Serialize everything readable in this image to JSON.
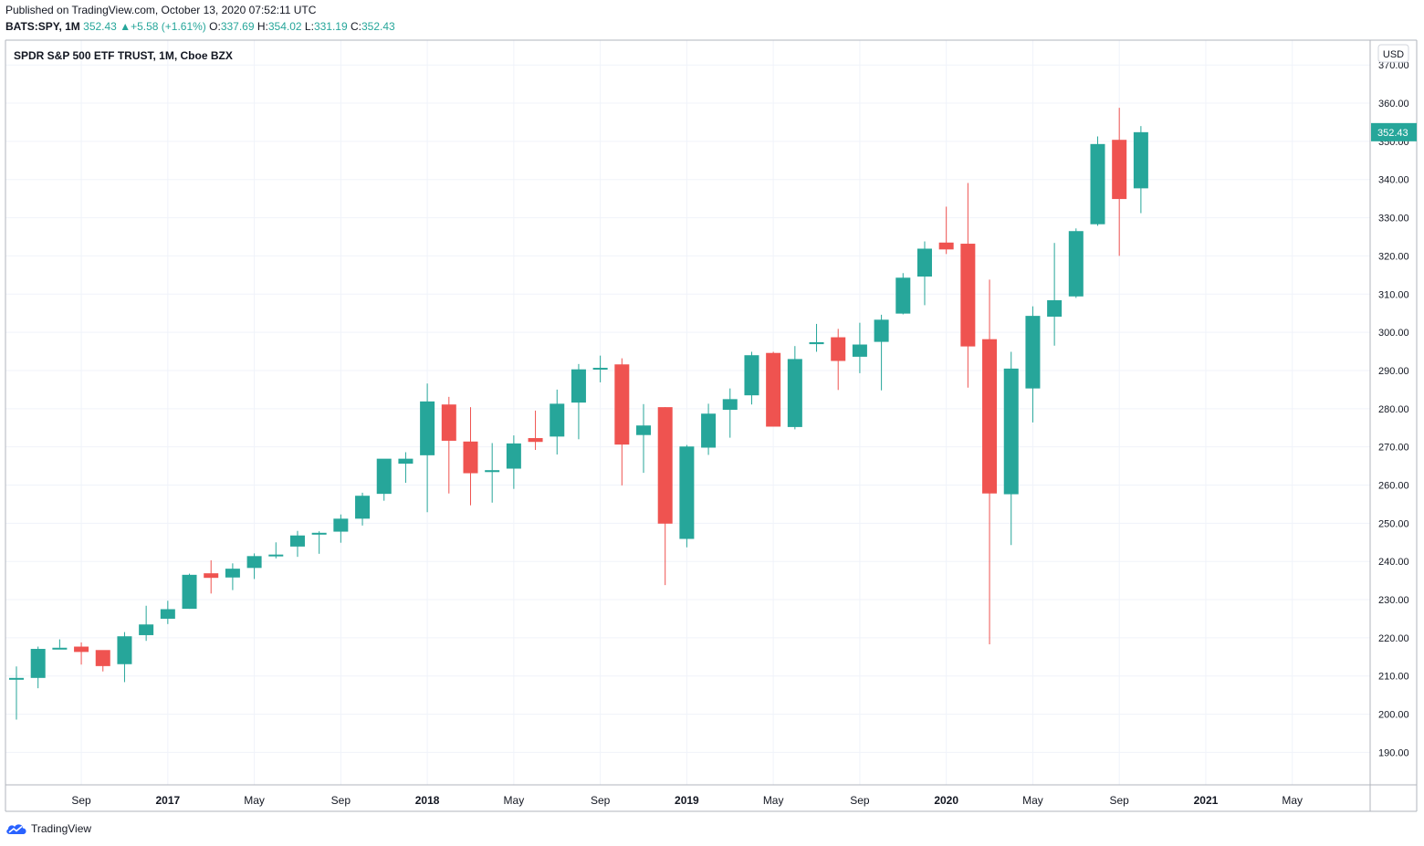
{
  "header": {
    "published": "Published on TradingView.com, October 13, 2020 07:52:11 UTC",
    "symbol_line": "BATS:SPY, 1M",
    "last": "352.43",
    "change": "+5.58 (+1.61%)",
    "open_label": "O:",
    "open": "337.69",
    "high_label": "H:",
    "high": "354.02",
    "low_label": "L:",
    "low": "331.19",
    "close_label": "C:",
    "close": "352.43"
  },
  "footer": {
    "brand": "TradingView"
  },
  "colors": {
    "up": "#26a69a",
    "down": "#ef5350",
    "grid": "#f0f3fa",
    "text": "#131722",
    "axis_border": "#b2b5be"
  },
  "chart_data": {
    "type": "candlestick",
    "title": "SPDR S&P 500 ETF TRUST, 1M, Cboe BZX",
    "currency": "USD",
    "last_price_label": "352.43",
    "ylim": [
      181.5,
      376.5
    ],
    "y_ticks": [
      190,
      200,
      210,
      220,
      230,
      240,
      250,
      260,
      270,
      280,
      290,
      300,
      310,
      320,
      330,
      340,
      350,
      360,
      370
    ],
    "y_tick_labels": [
      "190.00",
      "200.00",
      "210.00",
      "220.00",
      "230.00",
      "240.00",
      "250.00",
      "260.00",
      "270.00",
      "280.00",
      "290.00",
      "300.00",
      "310.00",
      "320.00",
      "330.00",
      "340.00",
      "350.00",
      "360.00",
      "370.00"
    ],
    "x_ticks": [
      {
        "label": "Sep",
        "month": "2016-09"
      },
      {
        "label": "2017",
        "month": "2017-01",
        "bold": true
      },
      {
        "label": "May",
        "month": "2017-05"
      },
      {
        "label": "Sep",
        "month": "2017-09"
      },
      {
        "label": "2018",
        "month": "2018-01",
        "bold": true
      },
      {
        "label": "May",
        "month": "2018-05"
      },
      {
        "label": "Sep",
        "month": "2018-09"
      },
      {
        "label": "2019",
        "month": "2019-01",
        "bold": true
      },
      {
        "label": "May",
        "month": "2019-05"
      },
      {
        "label": "Sep",
        "month": "2019-09"
      },
      {
        "label": "2020",
        "month": "2020-01",
        "bold": true
      },
      {
        "label": "May",
        "month": "2020-05"
      },
      {
        "label": "Sep",
        "month": "2020-09"
      },
      {
        "label": "2021",
        "month": "2021-01",
        "bold": true
      },
      {
        "label": "May",
        "month": "2021-05"
      }
    ],
    "months": [
      "2016-06",
      "2016-07",
      "2016-08",
      "2016-09",
      "2016-10",
      "2016-11",
      "2016-12",
      "2017-01",
      "2017-02",
      "2017-03",
      "2017-04",
      "2017-05",
      "2017-06",
      "2017-07",
      "2017-08",
      "2017-09",
      "2017-10",
      "2017-11",
      "2017-12",
      "2018-01",
      "2018-02",
      "2018-03",
      "2018-04",
      "2018-05",
      "2018-06",
      "2018-07",
      "2018-08",
      "2018-09",
      "2018-10",
      "2018-11",
      "2018-12",
      "2019-01",
      "2019-02",
      "2019-03",
      "2019-04",
      "2019-05",
      "2019-06",
      "2019-07",
      "2019-08",
      "2019-09",
      "2019-10",
      "2019-11",
      "2019-12",
      "2020-01",
      "2020-02",
      "2020-03",
      "2020-04",
      "2020-05",
      "2020-06",
      "2020-07",
      "2020-08",
      "2020-09",
      "2020-10"
    ],
    "open": [
      209.1,
      209.5,
      217.2,
      217.7,
      216.8,
      213.1,
      220.7,
      225.0,
      227.6,
      236.9,
      235.8,
      238.3,
      241.8,
      243.9,
      247.1,
      247.8,
      251.2,
      257.7,
      265.6,
      267.8,
      281.1,
      271.4,
      263.4,
      264.3,
      272.3,
      272.7,
      281.6,
      290.3,
      291.6,
      273.1,
      280.4,
      245.9,
      269.8,
      279.7,
      283.5,
      294.6,
      275.2,
      296.9,
      298.7,
      293.6,
      297.5,
      304.9,
      314.6,
      323.5,
      323.2,
      298.2,
      257.6,
      285.3,
      304.1,
      309.4,
      328.3,
      350.4,
      337.7
    ],
    "high": [
      212.5,
      217.7,
      219.6,
      218.8,
      215.7,
      221.5,
      228.4,
      229.7,
      236.8,
      240.3,
      239.5,
      242.1,
      245.0,
      248.0,
      247.9,
      252.3,
      258.0,
      266.2,
      268.6,
      286.6,
      283.1,
      280.4,
      271.0,
      273.0,
      279.5,
      285.0,
      291.7,
      293.9,
      293.2,
      281.2,
      280.4,
      270.5,
      281.3,
      285.3,
      294.9,
      294.9,
      296.4,
      302.2,
      300.9,
      302.5,
      304.6,
      315.5,
      323.8,
      332.9,
      339.1,
      313.8,
      294.9,
      306.8,
      323.4,
      327.2,
      351.3,
      358.8,
      354.0
    ],
    "low": [
      198.6,
      206.8,
      217.4,
      213.0,
      211.2,
      208.4,
      219.2,
      223.6,
      227.6,
      231.6,
      232.5,
      235.4,
      240.8,
      241.2,
      242.0,
      244.9,
      249.4,
      255.9,
      260.6,
      252.9,
      257.8,
      254.7,
      255.4,
      259.0,
      269.2,
      268.0,
      272.0,
      286.9,
      259.9,
      263.2,
      233.8,
      243.7,
      267.9,
      272.4,
      281.1,
      276.9,
      274.6,
      294.9,
      284.9,
      289.3,
      284.8,
      304.7,
      307.1,
      320.5,
      285.5,
      218.3,
      244.3,
      276.4,
      296.5,
      309.0,
      327.9,
      320.0,
      331.2
    ],
    "close": [
      209.5,
      217.1,
      217.4,
      216.3,
      212.6,
      220.4,
      223.5,
      227.5,
      236.5,
      235.7,
      238.1,
      241.4,
      241.8,
      246.8,
      247.5,
      251.2,
      257.2,
      266.9,
      266.9,
      281.9,
      271.6,
      263.1,
      263.9,
      270.9,
      271.3,
      281.3,
      290.3,
      290.7,
      270.6,
      275.6,
      249.9,
      270.1,
      278.7,
      282.5,
      294.0,
      275.3,
      293.0,
      297.4,
      292.5,
      296.8,
      303.3,
      314.3,
      321.9,
      321.7,
      296.3,
      257.8,
      290.5,
      304.3,
      308.4,
      326.5,
      349.3,
      334.9,
      352.4
    ]
  }
}
